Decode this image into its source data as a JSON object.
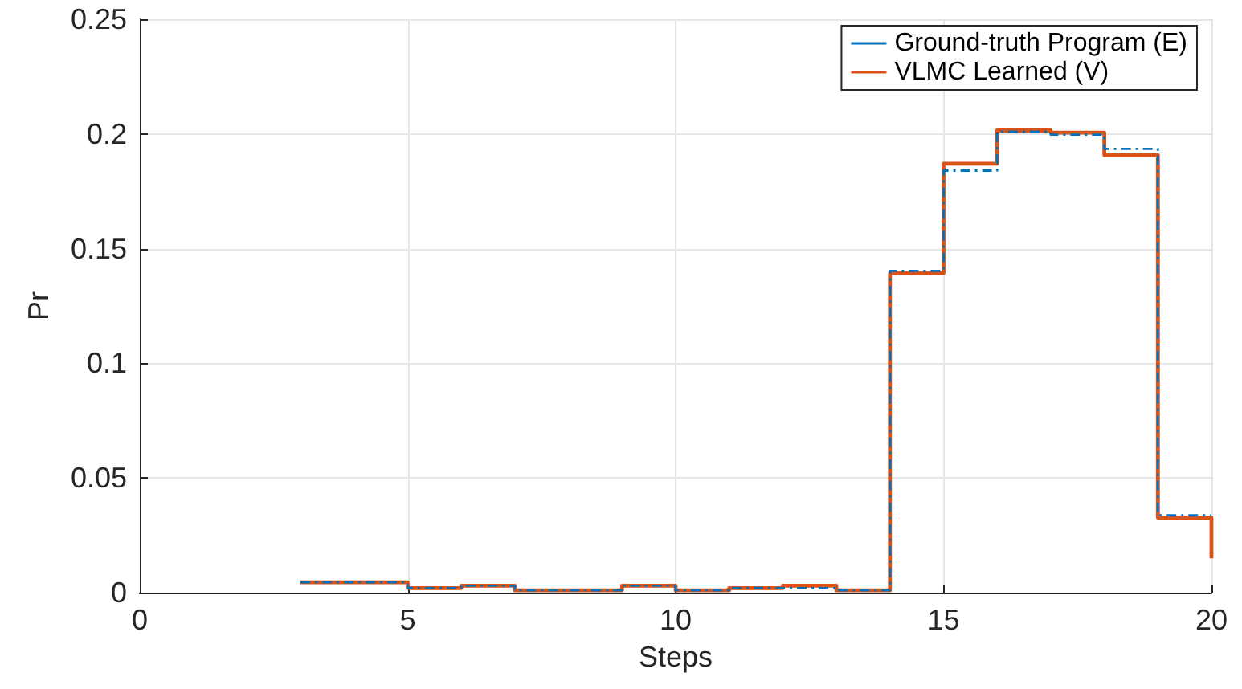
{
  "chart_data": {
    "type": "step",
    "xlabel": "Steps",
    "ylabel": "Pr",
    "x": [
      3,
      5,
      6,
      7,
      8,
      9,
      10,
      11,
      12,
      13,
      14,
      15,
      16,
      17,
      18,
      19,
      20
    ],
    "series": [
      {
        "name": "Ground-truth Program (E)",
        "color": "#0072bd",
        "line_style": "dashdot",
        "values": [
          0.0045,
          0.002,
          0.003,
          0.001,
          0.001,
          0.003,
          0.001,
          0.002,
          0.002,
          0.001,
          0.1403,
          0.184,
          0.201,
          0.1997,
          0.1935,
          0.0337,
          0.0337
        ]
      },
      {
        "name": "VLMC Learned (V)",
        "color": "#d95319",
        "line_style": "solid",
        "values": [
          0.0045,
          0.002,
          0.003,
          0.001,
          0.001,
          0.003,
          0.001,
          0.002,
          0.003,
          0.001,
          0.1393,
          0.187,
          0.2015,
          0.2006,
          0.1907,
          0.0327,
          0.015
        ]
      }
    ],
    "xlim": [
      0,
      20
    ],
    "xticks": [
      0,
      5,
      10,
      15,
      20
    ],
    "ylim": [
      0,
      0.25
    ],
    "yticks": [
      0,
      0.05,
      0.1,
      0.15,
      0.2,
      0.25
    ],
    "grid": true,
    "legend": "top right",
    "marker": "none"
  }
}
